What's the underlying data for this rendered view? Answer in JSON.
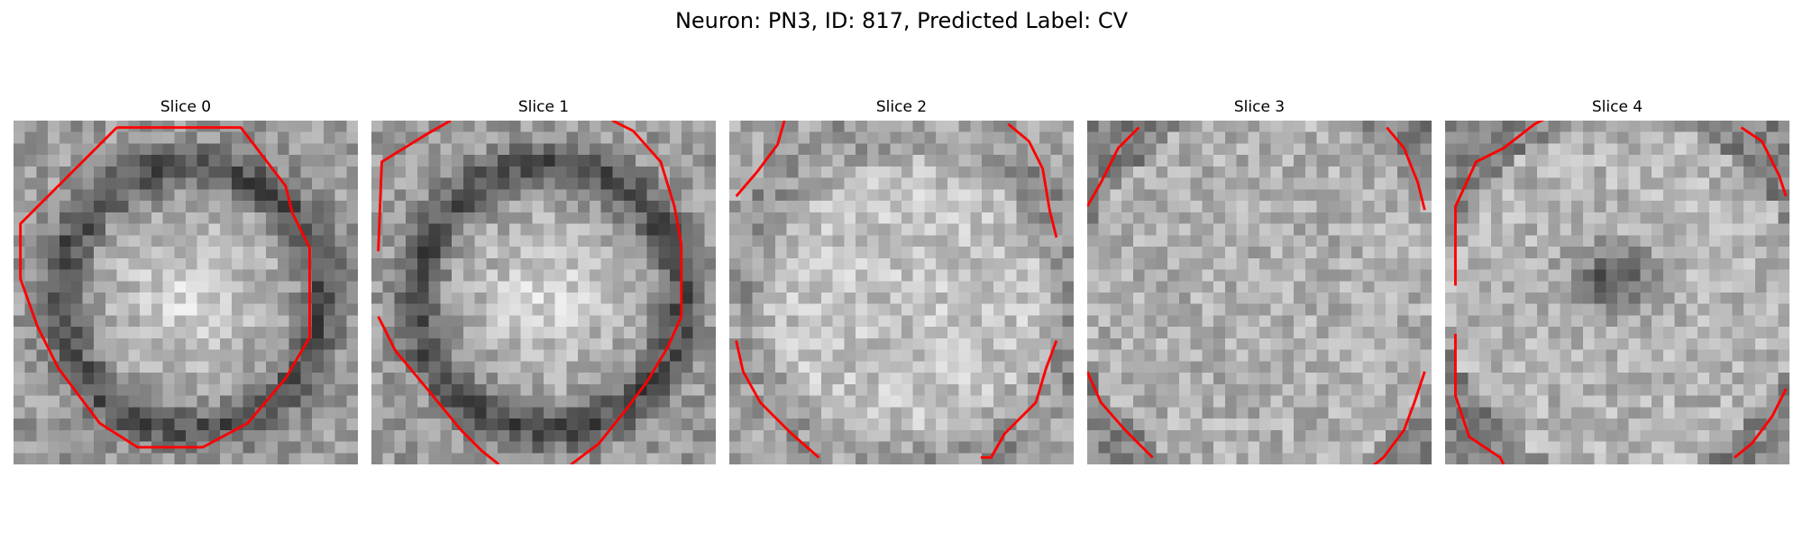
{
  "figure": {
    "title": "Neuron: PN3, ID: 817, Predicted Label: CV"
  },
  "contour_color": "#ff0000",
  "slices": [
    {
      "title": "Slice 0",
      "pattern": "dark-ring-bright-center",
      "contours": [
        [
          [
            30,
            2
          ],
          [
            2,
            30
          ],
          [
            2,
            46
          ],
          [
            7,
            60
          ],
          [
            13,
            72
          ],
          [
            25,
            88
          ],
          [
            36,
            95
          ],
          [
            55,
            95
          ],
          [
            68,
            88
          ],
          [
            79,
            75
          ],
          [
            86,
            63
          ],
          [
            86,
            37
          ],
          [
            81,
            27
          ],
          [
            79,
            19
          ],
          [
            66,
            2
          ],
          [
            30,
            2
          ]
        ]
      ]
    },
    {
      "title": "Slice 1",
      "pattern": "dark-ring-bright-center",
      "contours": [
        [
          [
            2,
            38
          ],
          [
            3,
            12
          ],
          [
            16,
            4
          ],
          [
            23,
            0
          ]
        ],
        [
          [
            70,
            0
          ],
          [
            76,
            3
          ],
          [
            84,
            12
          ],
          [
            88,
            25
          ],
          [
            90,
            36
          ],
          [
            90,
            57
          ],
          [
            86,
            66
          ],
          [
            80,
            76
          ],
          [
            74,
            84
          ],
          [
            66,
            94
          ],
          [
            58,
            100
          ]
        ],
        [
          [
            2,
            57
          ],
          [
            7,
            67
          ],
          [
            17,
            79
          ],
          [
            26,
            90
          ],
          [
            32,
            96
          ],
          [
            37,
            100
          ]
        ]
      ]
    },
    {
      "title": "Slice 2",
      "pattern": "bright-center-faint-ring",
      "contours": [
        [
          [
            2,
            22
          ],
          [
            8,
            15
          ],
          [
            14,
            7
          ],
          [
            16,
            0
          ]
        ],
        [
          [
            81,
            1
          ],
          [
            87,
            6
          ],
          [
            91,
            14
          ],
          [
            93,
            26
          ],
          [
            95,
            34
          ]
        ],
        [
          [
            2,
            64
          ],
          [
            4,
            73
          ],
          [
            9,
            82
          ],
          [
            18,
            91
          ],
          [
            26,
            98
          ]
        ],
        [
          [
            95,
            64
          ],
          [
            92,
            72
          ],
          [
            89,
            82
          ],
          [
            80,
            91
          ],
          [
            76,
            98
          ],
          [
            73,
            98
          ]
        ]
      ]
    },
    {
      "title": "Slice 3",
      "pattern": "uniform-noise",
      "contours": [
        [
          [
            0,
            25
          ],
          [
            4,
            18
          ],
          [
            9,
            8
          ],
          [
            15,
            2
          ]
        ],
        [
          [
            87,
            2
          ],
          [
            92,
            8
          ],
          [
            96,
            18
          ],
          [
            98,
            26
          ]
        ],
        [
          [
            0,
            73
          ],
          [
            4,
            82
          ],
          [
            11,
            90
          ],
          [
            19,
            98
          ]
        ],
        [
          [
            98,
            73
          ],
          [
            95,
            82
          ],
          [
            92,
            90
          ],
          [
            86,
            98
          ],
          [
            81,
            102
          ]
        ]
      ]
    },
    {
      "title": "Slice 4",
      "pattern": "dark-blob-center",
      "contours": [
        [
          [
            3,
            48
          ],
          [
            3,
            25
          ],
          [
            9,
            12
          ],
          [
            17,
            8
          ],
          [
            26,
            1
          ],
          [
            30,
            -1
          ]
        ],
        [
          [
            86,
            2
          ],
          [
            92,
            6
          ],
          [
            97,
            16
          ],
          [
            99,
            22
          ]
        ],
        [
          [
            3,
            62
          ],
          [
            3,
            80
          ],
          [
            7,
            92
          ],
          [
            16,
            98
          ],
          [
            17,
            100
          ]
        ],
        [
          [
            99,
            78
          ],
          [
            95,
            86
          ],
          [
            89,
            94
          ],
          [
            84,
            98
          ]
        ]
      ]
    }
  ]
}
